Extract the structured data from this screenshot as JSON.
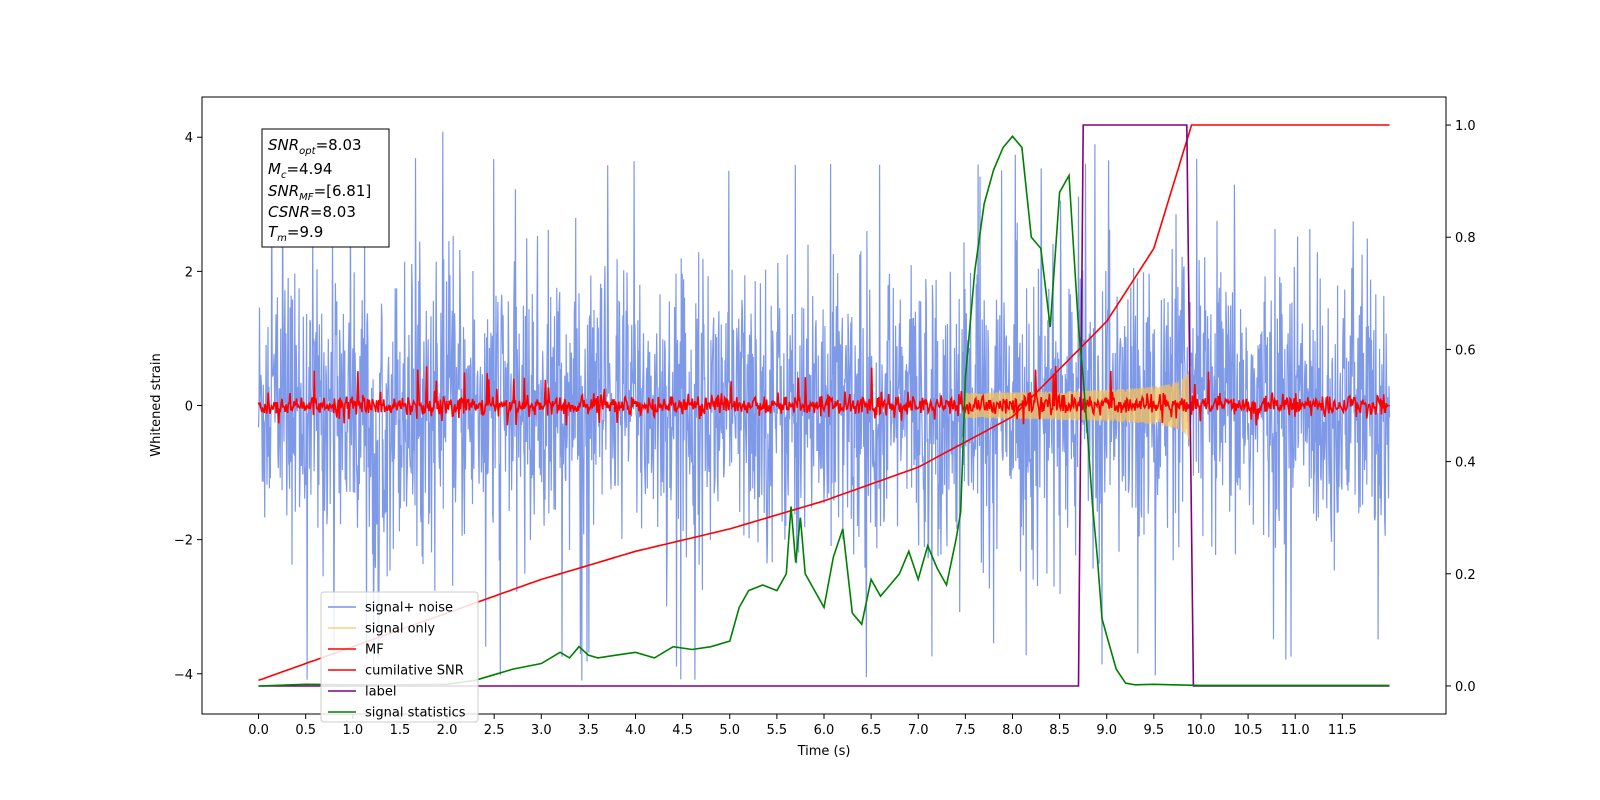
{
  "chart_data": {
    "type": "line",
    "xlabel": "Time (s)",
    "ylabel_left": "Whitened strain",
    "ylabel_right": "",
    "xlim": [
      -0.6,
      12.6
    ],
    "ylim_left": [
      -4.6,
      4.6
    ],
    "ylim_right": [
      -0.05,
      1.05
    ],
    "x_ticks": [
      "0.0",
      "0.5",
      "1.0",
      "1.5",
      "2.0",
      "2.5",
      "3.0",
      "3.5",
      "4.0",
      "4.5",
      "5.0",
      "5.5",
      "6.0",
      "6.5",
      "7.0",
      "7.5",
      "8.0",
      "8.5",
      "9.0",
      "9.5",
      "10.0",
      "10.5",
      "11.0",
      "11.5"
    ],
    "y_ticks_left": [
      "4",
      "2",
      "0",
      "−2",
      "−4"
    ],
    "y_ticks_right": [
      "1.0",
      "0.8",
      "0.6",
      "0.4",
      "0.2",
      "0.0"
    ],
    "grid": false,
    "legend_placement": "lower-left",
    "info_box": {
      "snr_opt": {
        "base": "SNR",
        "sub": "opt",
        "value": "=8.03"
      },
      "mc": {
        "base": "M",
        "sub": "c",
        "value": "=4.94"
      },
      "snr_mf": {
        "base": "SNR",
        "sub": "MF",
        "value": "=[6.81]"
      },
      "csnr": {
        "base": "CSNR",
        "sub": "",
        "value": "=8.03"
      },
      "tm": {
        "base": "T",
        "sub": "m",
        "value": "=9.9"
      }
    },
    "series": [
      {
        "name": "signal+ noise",
        "color": "#7893e8",
        "axis": "left",
        "kind": "noise",
        "x_range": [
          0,
          12
        ],
        "typical_amplitude": 2.5,
        "peak_amplitude": 4.1
      },
      {
        "name": "signal only",
        "color": "#f6c25b",
        "axis": "left",
        "kind": "chirp",
        "x_range": [
          7.5,
          9.9
        ],
        "peak_amplitude": 0.7
      },
      {
        "name": "MF",
        "color": "#ff0000",
        "axis": "left",
        "kind": "noise",
        "x_range": [
          0,
          12
        ],
        "typical_amplitude": 0.15,
        "peak_amplitude": 0.6
      },
      {
        "name": "cumilative SNR",
        "color": "#ff0000",
        "axis": "right",
        "x": [
          0,
          1,
          2,
          3,
          4,
          5,
          6,
          7,
          8,
          9,
          9.5,
          9.9,
          12
        ],
        "y": [
          0.01,
          0.07,
          0.13,
          0.19,
          0.24,
          0.28,
          0.33,
          0.39,
          0.48,
          0.65,
          0.78,
          1.0,
          1.0
        ]
      },
      {
        "name": "label",
        "color": "#800080",
        "axis": "right",
        "x": [
          0,
          8.7,
          8.75,
          9.85,
          9.92,
          12
        ],
        "y": [
          0,
          0,
          1,
          1,
          0,
          0
        ]
      },
      {
        "name": "signal statistics",
        "color": "#008000",
        "axis": "right",
        "x": [
          0,
          0.5,
          1.0,
          1.5,
          2.0,
          2.3,
          2.5,
          2.7,
          3.0,
          3.2,
          3.3,
          3.4,
          3.5,
          3.6,
          3.8,
          4.0,
          4.2,
          4.4,
          4.6,
          4.8,
          5.0,
          5.1,
          5.2,
          5.35,
          5.5,
          5.6,
          5.65,
          5.7,
          5.75,
          5.8,
          5.9,
          6.0,
          6.1,
          6.2,
          6.3,
          6.4,
          6.5,
          6.6,
          6.7,
          6.8,
          6.9,
          7.0,
          7.1,
          7.2,
          7.3,
          7.4,
          7.45,
          7.5,
          7.6,
          7.7,
          7.8,
          7.9,
          8.0,
          8.1,
          8.2,
          8.3,
          8.4,
          8.5,
          8.6,
          8.7,
          8.75,
          8.8,
          8.85,
          8.9,
          8.95,
          9.0,
          9.1,
          9.2,
          9.3,
          9.5,
          9.7,
          10.0,
          11.0,
          12.0
        ],
        "y": [
          0.0,
          0.003,
          0.002,
          0.002,
          0.003,
          0.01,
          0.02,
          0.03,
          0.04,
          0.06,
          0.05,
          0.07,
          0.055,
          0.05,
          0.055,
          0.06,
          0.05,
          0.07,
          0.065,
          0.07,
          0.08,
          0.14,
          0.17,
          0.18,
          0.17,
          0.2,
          0.32,
          0.22,
          0.3,
          0.2,
          0.17,
          0.14,
          0.23,
          0.28,
          0.13,
          0.11,
          0.19,
          0.16,
          0.18,
          0.2,
          0.24,
          0.19,
          0.25,
          0.21,
          0.18,
          0.26,
          0.31,
          0.55,
          0.74,
          0.86,
          0.92,
          0.96,
          0.98,
          0.96,
          0.8,
          0.78,
          0.64,
          0.88,
          0.91,
          0.64,
          0.55,
          0.44,
          0.32,
          0.23,
          0.12,
          0.09,
          0.03,
          0.005,
          0.002,
          0.003,
          0.002,
          0.001,
          0.001,
          0.001
        ]
      }
    ]
  }
}
